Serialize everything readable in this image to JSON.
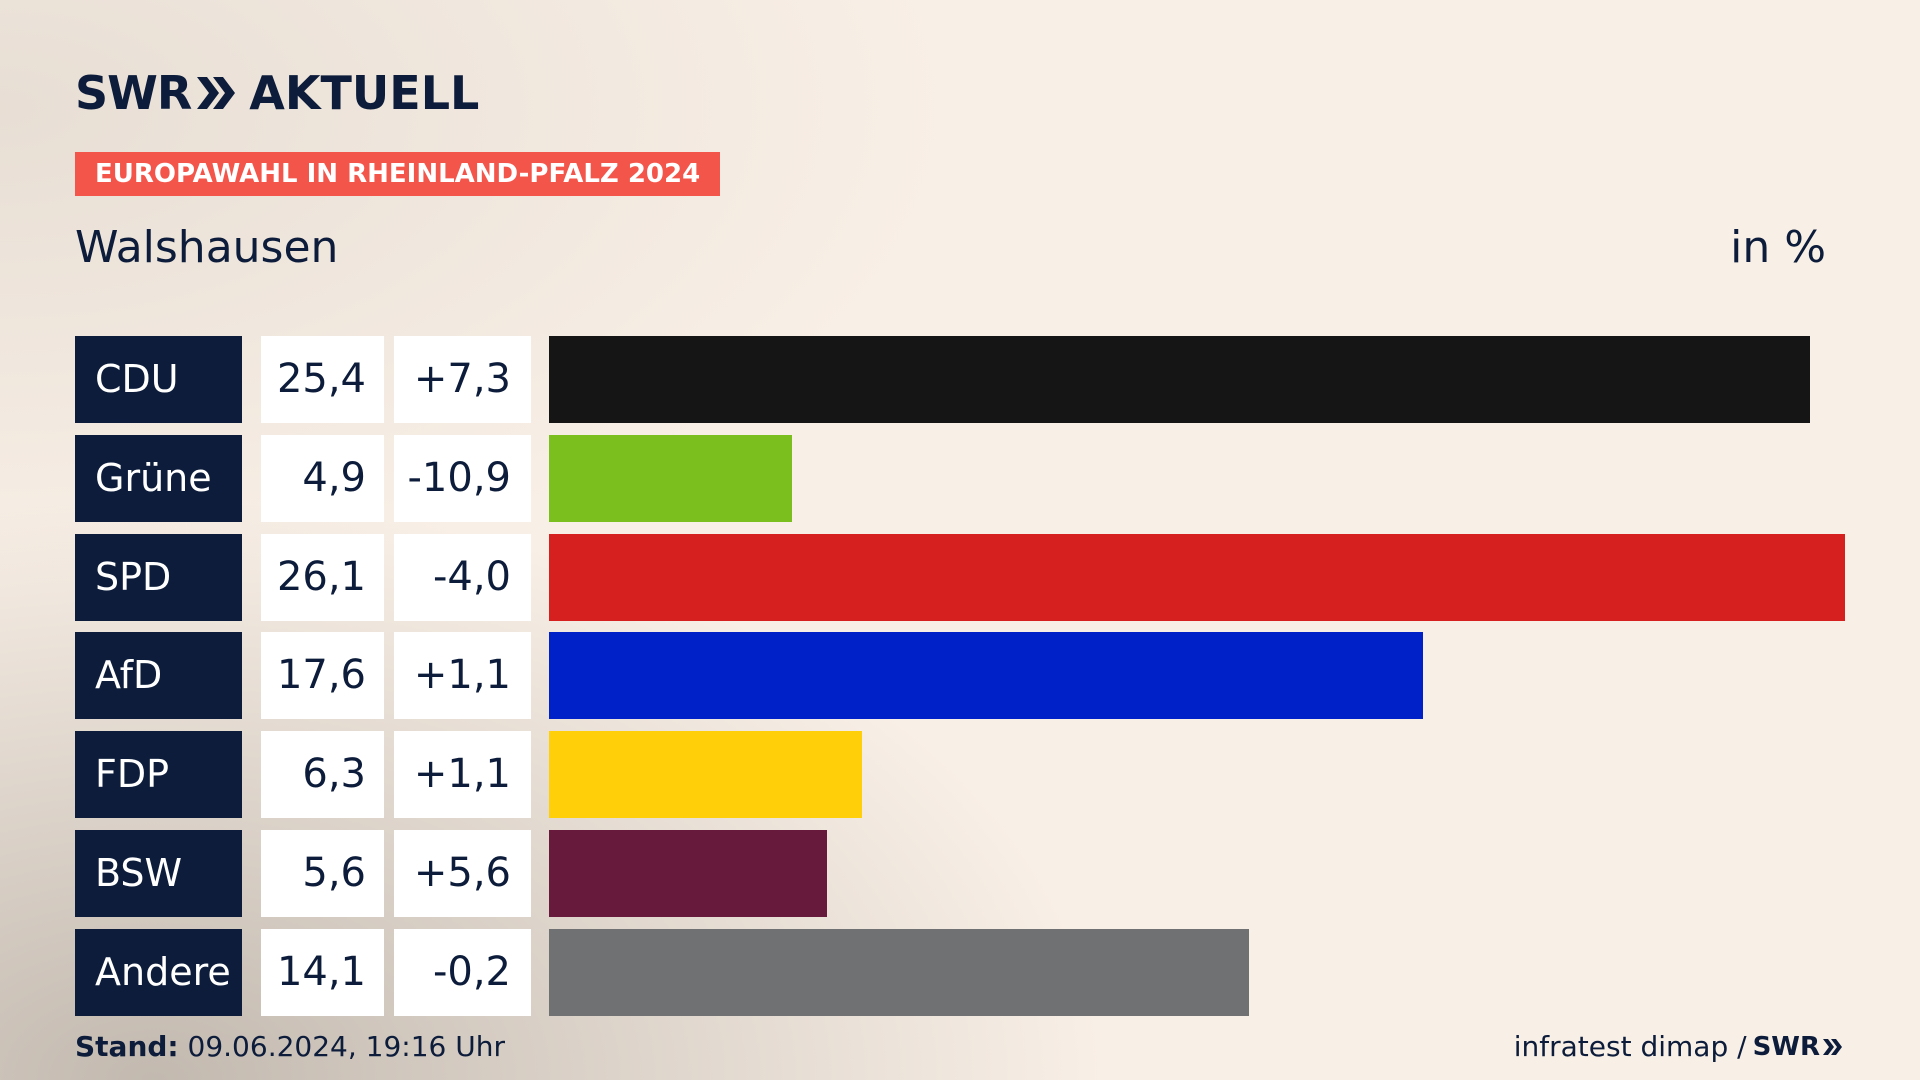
{
  "header": {
    "logo_left": "SWR",
    "logo_right": "AKTUELL",
    "tag": "EUROPAWAHL IN RHEINLAND-PFALZ 2024",
    "place": "Walshausen",
    "unit": "in %"
  },
  "footer": {
    "stand_label": "Stand:",
    "stand_value": "09.06.2024, 19:16 Uhr",
    "source": "infratest dimap /",
    "source_logo": "SWR"
  },
  "colors": {
    "accent": "#f4554a",
    "navy": "#0c1c3a"
  },
  "chart_data": {
    "type": "bar",
    "orientation": "horizontal",
    "categories": [
      "CDU",
      "Grüne",
      "SPD",
      "AfD",
      "FDP",
      "BSW",
      "Andere"
    ],
    "values": [
      25.4,
      4.9,
      26.1,
      17.6,
      6.3,
      5.6,
      14.1
    ],
    "value_labels": [
      "25,4",
      "4,9",
      "26,1",
      "17,6",
      "6,3",
      "5,6",
      "14,1"
    ],
    "changes": [
      7.3,
      -10.9,
      -4.0,
      1.1,
      1.1,
      5.6,
      -0.2
    ],
    "change_labels": [
      "+7,3",
      "-10,9",
      "-4,0",
      "+1,1",
      "+1,1",
      "+5,6",
      "-0,2"
    ],
    "bar_colors": [
      "#151515",
      "#7abf1d",
      "#d61f1f",
      "#0021c8",
      "#ffd00a",
      "#681a3d",
      "#707173"
    ],
    "title": "Walshausen",
    "unit": "in %"
  }
}
